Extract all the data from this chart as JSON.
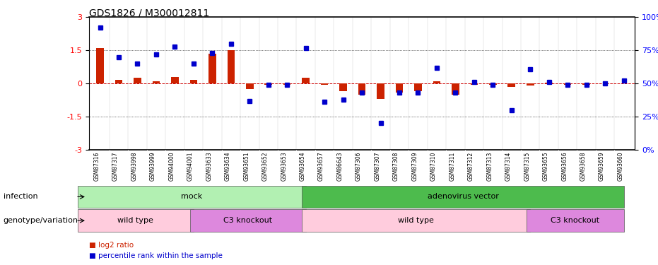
{
  "title": "GDS1826 / M300012811",
  "samples": [
    "GSM87316",
    "GSM87317",
    "GSM93998",
    "GSM93999",
    "GSM94000",
    "GSM94001",
    "GSM93633",
    "GSM93634",
    "GSM93651",
    "GSM93652",
    "GSM93653",
    "GSM93654",
    "GSM93657",
    "GSM86643",
    "GSM87306",
    "GSM87307",
    "GSM87308",
    "GSM87309",
    "GSM87310",
    "GSM87311",
    "GSM87312",
    "GSM87313",
    "GSM87314",
    "GSM87315",
    "GSM93655",
    "GSM93656",
    "GSM93658",
    "GSM93659",
    "GSM93660"
  ],
  "log2_ratio": [
    1.6,
    0.15,
    0.25,
    0.1,
    0.3,
    0.15,
    1.35,
    1.5,
    -0.25,
    -0.05,
    -0.05,
    0.25,
    -0.05,
    -0.35,
    -0.5,
    -0.7,
    -0.4,
    -0.35,
    0.1,
    -0.5,
    -0.05,
    -0.05,
    -0.15,
    -0.1,
    0.05,
    -0.05,
    -0.05,
    0.0,
    0.02
  ],
  "percentile_rank": [
    92,
    70,
    65,
    72,
    78,
    65,
    73,
    80,
    37,
    49,
    49,
    77,
    36,
    38,
    43,
    20,
    43,
    43,
    62,
    43,
    51,
    49,
    30,
    61,
    51,
    49,
    49,
    50,
    52
  ],
  "infection_groups": [
    {
      "label": "mock",
      "start": 0,
      "end": 12,
      "color": "#b2f0b2"
    },
    {
      "label": "adenovirus vector",
      "start": 12,
      "end": 29,
      "color": "#4dbb4d"
    }
  ],
  "genotype_groups": [
    {
      "label": "wild type",
      "start": 0,
      "end": 6,
      "color": "#ffccdd"
    },
    {
      "label": "C3 knockout",
      "start": 6,
      "end": 12,
      "color": "#dd88dd"
    },
    {
      "label": "wild type",
      "start": 12,
      "end": 24,
      "color": "#ffccdd"
    },
    {
      "label": "C3 knockout",
      "start": 24,
      "end": 29,
      "color": "#dd88dd"
    }
  ],
  "bar_color_red": "#cc2200",
  "dot_color_blue": "#0000cc",
  "ylim_left": [
    -3,
    3
  ],
  "yticks_left": [
    -3,
    -1.5,
    0,
    1.5,
    3
  ],
  "yticks_right": [
    0,
    25,
    50,
    75,
    100
  ],
  "legend_red": "log2 ratio",
  "legend_blue": "percentile rank within the sample",
  "row_label_infection": "infection",
  "row_label_genotype": "genotype/variation"
}
